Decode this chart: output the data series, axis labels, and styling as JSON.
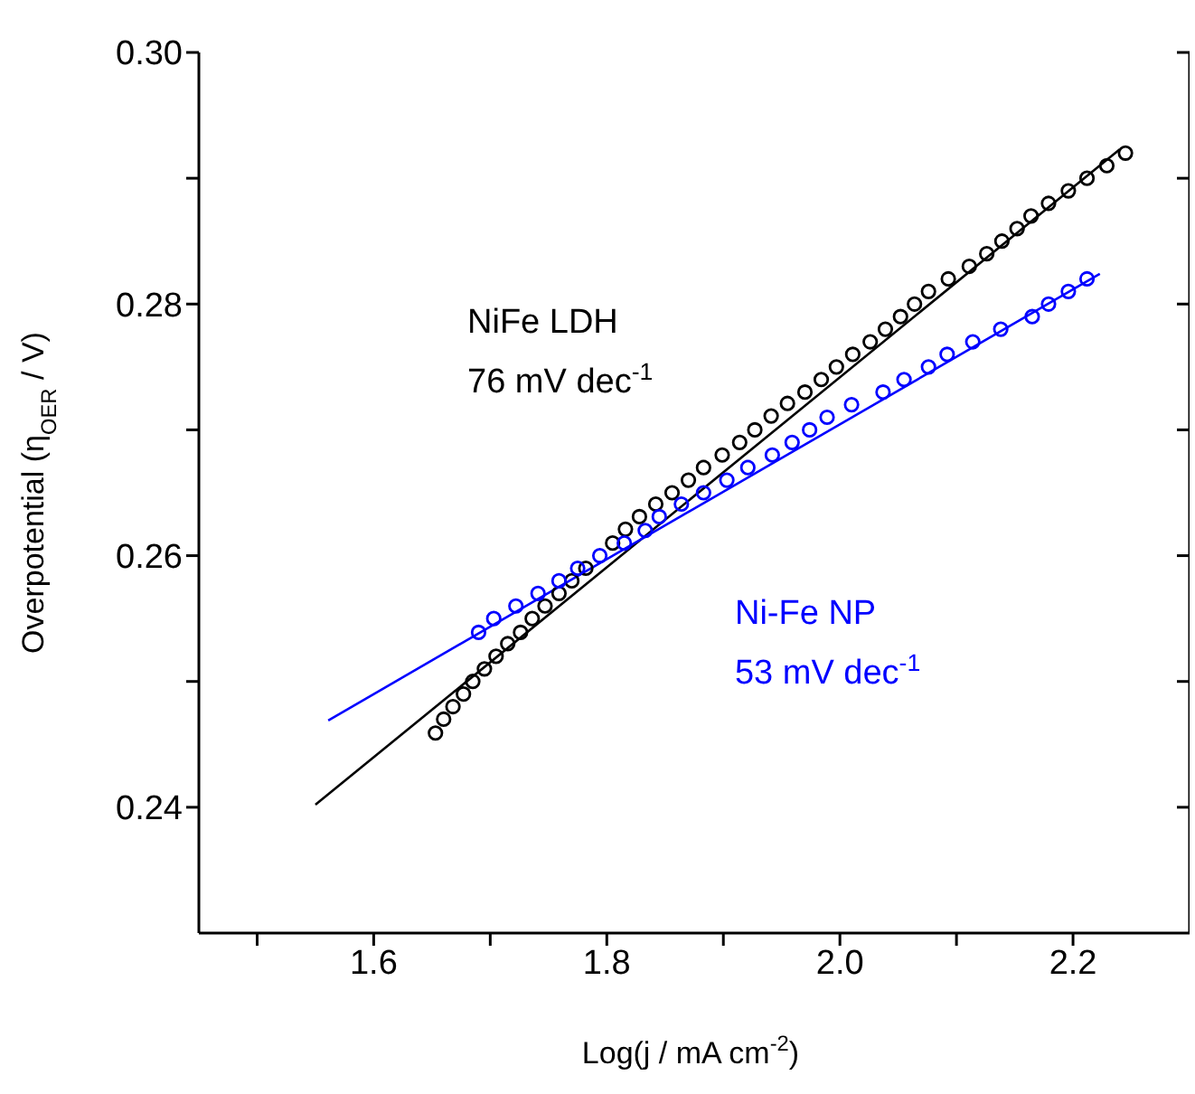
{
  "chart_data": {
    "type": "scatter",
    "xlabel": "Log(j / mA cm$^{-2}$)",
    "ylabel": "Overpotential (η$_{OER}$ / V)",
    "xlim": [
      1.45,
      2.3
    ],
    "ylim": [
      0.23,
      0.3
    ],
    "xticks": [
      {
        "value": 1.5,
        "label": null
      },
      {
        "value": 1.6,
        "label": "1.6"
      },
      {
        "value": 1.7,
        "label": null
      },
      {
        "value": 1.8,
        "label": "1.8"
      },
      {
        "value": 1.9,
        "label": null
      },
      {
        "value": 2.0,
        "label": "2.0"
      },
      {
        "value": 2.1,
        "label": null
      },
      {
        "value": 2.2,
        "label": "2.2"
      }
    ],
    "yticks": [
      {
        "value": 0.24,
        "label": "0.24"
      },
      {
        "value": 0.25,
        "label": null
      },
      {
        "value": 0.26,
        "label": "0.26"
      },
      {
        "value": 0.27,
        "label": null
      },
      {
        "value": 0.28,
        "label": "0.28"
      },
      {
        "value": 0.29,
        "label": null
      },
      {
        "value": 0.3,
        "label": "0.30"
      }
    ],
    "series": [
      {
        "name": "NiFe LDH",
        "color": "#000000",
        "marker": "circle",
        "x": [
          1.653,
          1.66,
          1.668,
          1.677,
          1.685,
          1.695,
          1.705,
          1.715,
          1.726,
          1.736,
          1.747,
          1.759,
          1.77,
          1.782,
          1.793,
          1.805,
          1.816,
          1.828,
          1.842,
          1.856,
          1.87,
          1.883,
          1.899,
          1.914,
          1.927,
          1.941,
          1.955,
          1.97,
          1.984,
          1.997,
          2.011,
          2.026,
          2.039,
          2.052,
          2.064,
          2.076,
          2.093,
          2.111,
          2.126,
          2.139,
          2.152,
          2.164,
          2.179,
          2.196,
          2.212,
          2.229,
          2.245
        ],
        "values": [
          0.2459,
          0.247,
          0.248,
          0.249,
          0.25,
          0.251,
          0.252,
          0.253,
          0.2539,
          0.255,
          0.256,
          0.257,
          0.258,
          0.259,
          null,
          0.261,
          0.2621,
          0.2631,
          0.2641,
          0.265,
          0.266,
          0.267,
          0.268,
          0.269,
          0.27,
          0.2711,
          0.2721,
          0.273,
          0.274,
          0.275,
          0.276,
          0.277,
          0.278,
          0.279,
          0.28,
          0.281,
          0.282,
          0.283,
          0.284,
          0.285,
          0.286,
          0.287,
          0.288,
          0.289,
          0.29,
          0.291,
          0.292
        ]
      },
      {
        "name": "Ni-Fe NP",
        "color": "#0000ff",
        "marker": "circle",
        "x": [
          1.69,
          1.703,
          1.722,
          1.741,
          1.759,
          1.775,
          1.794,
          1.815,
          1.833,
          1.845,
          1.864,
          1.883,
          1.903,
          1.921,
          1.942,
          1.959,
          1.974,
          1.989,
          2.01,
          2.037,
          2.055,
          2.076,
          2.092,
          2.114,
          2.138,
          2.165,
          2.179,
          2.196,
          2.212
        ],
        "values": [
          0.2539,
          0.255,
          0.256,
          0.257,
          0.258,
          0.259,
          0.26,
          0.261,
          0.262,
          0.2631,
          0.2641,
          0.265,
          0.266,
          0.267,
          0.268,
          0.269,
          0.27,
          0.271,
          0.272,
          0.273,
          0.274,
          0.275,
          0.276,
          0.277,
          0.278,
          0.279,
          0.28,
          0.281,
          0.282
        ]
      },
      {
        "type": "line",
        "color": "#000000",
        "marker": "none",
        "x": [
          1.55,
          2.24
        ],
        "values": [
          0.2402,
          0.2923
        ]
      },
      {
        "type": "line",
        "color": "#0000ff",
        "marker": "none",
        "x": [
          1.561,
          2.223
        ],
        "values": [
          0.2469,
          0.2824
        ]
      }
    ],
    "annotations": [
      "76 mV dec$^{-1}$",
      "53 mV dec$^{-1}$"
    ]
  }
}
